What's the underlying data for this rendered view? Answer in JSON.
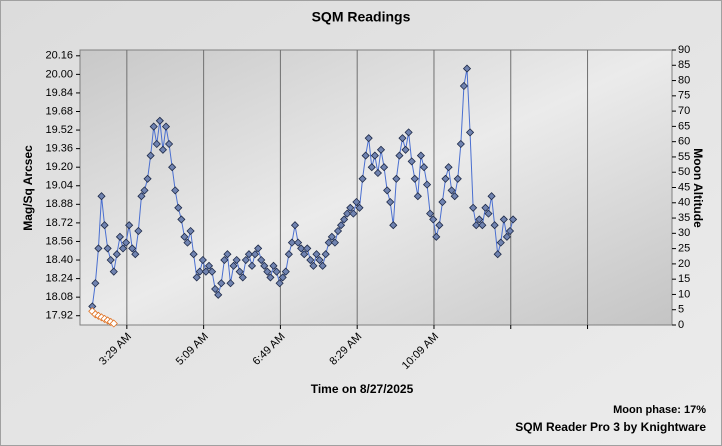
{
  "chart_data": {
    "type": "line",
    "title": "SQM Readings",
    "y_label": "Mag/Sq Arcsec",
    "y2_label": "Moon Altitude",
    "x_label": "Time on 8/27/2025",
    "annotations": [
      "Moon phase: 17%",
      "SQM Reader Pro 3 by Knightware"
    ],
    "xlim": [
      "2:28 AM",
      "3:19 PM"
    ],
    "xticks": [
      {
        "value": "3:29 AM",
        "label": "3:29 AM"
      },
      {
        "value": "5:09 AM",
        "label": "5:09 AM"
      },
      {
        "value": "6:49 AM",
        "label": "6:49 AM"
      },
      {
        "value": "8:29 AM",
        "label": "8:29 AM"
      },
      {
        "value": "10:09 AM",
        "label": "10:09 AM"
      },
      {
        "value": "11:49 AM",
        "label": null
      },
      {
        "value": "1:29 PM",
        "label": null
      }
    ],
    "ylim": [
      17.84,
      20.21
    ],
    "yticks": [
      17.92,
      18.08,
      18.24,
      {
        "value": 18.4,
        "label": "18.40"
      },
      18.56,
      18.72,
      18.88,
      19.04,
      {
        "value": 19.2,
        "label": "19.20"
      },
      19.36,
      19.52,
      19.68,
      19.84,
      {
        "value": 20,
        "label": "20.00"
      },
      20.16
    ],
    "y2lim": [
      0,
      90
    ],
    "y2ticks": [
      0,
      5,
      10,
      15,
      20,
      25,
      30,
      35,
      40,
      45,
      50,
      55,
      60,
      65,
      70,
      75,
      80,
      85,
      90
    ],
    "grid": {
      "x": true,
      "y": false
    },
    "x": [
      "2:44 AM",
      "2:48 AM",
      "2:52 AM",
      "2:56 AM",
      "3:00 AM",
      "3:04 AM",
      "3:08 AM",
      "3:12 AM",
      "3:16 AM",
      "3:20 AM",
      "3:24 AM",
      "3:28 AM",
      "3:32 AM",
      "3:36 AM",
      "3:40 AM",
      "3:44 AM",
      "3:48 AM",
      "3:52 AM",
      "3:56 AM",
      "4:00 AM",
      "4:04 AM",
      "4:08 AM",
      "4:12 AM",
      "4:16 AM",
      "4:20 AM",
      "4:24 AM",
      "4:28 AM",
      "4:32 AM",
      "4:36 AM",
      "4:40 AM",
      "4:44 AM",
      "4:48 AM",
      "4:52 AM",
      "4:56 AM",
      "5:00 AM",
      "5:04 AM",
      "5:08 AM",
      "5:12 AM",
      "5:16 AM",
      "5:20 AM",
      "5:24 AM",
      "5:28 AM",
      "5:32 AM",
      "5:36 AM",
      "5:40 AM",
      "5:44 AM",
      "5:48 AM",
      "5:52 AM",
      "5:56 AM",
      "6:00 AM",
      "6:04 AM",
      "6:08 AM",
      "6:12 AM",
      "6:16 AM",
      "6:20 AM",
      "6:24 AM",
      "6:28 AM",
      "6:32 AM",
      "6:36 AM",
      "6:40 AM",
      "6:44 AM",
      "6:48 AM",
      "6:52 AM",
      "6:56 AM",
      "7:00 AM",
      "7:04 AM",
      "7:08 AM",
      "7:12 AM",
      "7:16 AM",
      "7:20 AM",
      "7:24 AM",
      "7:28 AM",
      "7:32 AM",
      "7:36 AM",
      "7:40 AM",
      "7:44 AM",
      "7:48 AM",
      "7:52 AM",
      "7:56 AM",
      "8:00 AM",
      "8:04 AM",
      "8:08 AM",
      "8:12 AM",
      "8:16 AM",
      "8:20 AM",
      "8:24 AM",
      "8:28 AM",
      "8:32 AM",
      "8:36 AM",
      "8:40 AM",
      "8:44 AM",
      "8:48 AM",
      "8:52 AM",
      "8:56 AM",
      "9:00 AM",
      "9:04 AM",
      "9:08 AM",
      "9:12 AM",
      "9:16 AM",
      "9:20 AM",
      "9:24 AM",
      "9:28 AM",
      "9:32 AM",
      "9:36 AM",
      "9:40 AM",
      "9:44 AM",
      "9:48 AM",
      "9:52 AM",
      "9:56 AM",
      "10:00 AM",
      "10:04 AM",
      "10:08 AM",
      "10:12 AM",
      "10:16 AM",
      "10:20 AM",
      "10:24 AM",
      "10:28 AM",
      "10:32 AM",
      "10:36 AM",
      "10:40 AM",
      "10:44 AM",
      "10:48 AM",
      "10:52 AM",
      "10:56 AM",
      "11:00 AM",
      "11:04 AM",
      "11:08 AM",
      "11:12 AM",
      "11:16 AM",
      "11:20 AM",
      "11:24 AM",
      "11:28 AM",
      "11:32 AM",
      "11:36 AM",
      "11:40 AM",
      "11:44 AM",
      "11:48 AM",
      "11:52 AM"
    ],
    "series": [
      {
        "color": "#4a6fd0",
        "marker_color": "#7083b0",
        "values": [
          18.0,
          18.2,
          18.5,
          18.95,
          18.7,
          18.5,
          18.4,
          18.3,
          18.45,
          18.6,
          18.5,
          18.55,
          18.7,
          18.5,
          18.45,
          18.65,
          18.95,
          19.0,
          19.1,
          19.3,
          19.55,
          19.4,
          19.6,
          19.35,
          19.55,
          19.4,
          19.2,
          19.0,
          18.85,
          18.75,
          18.6,
          18.55,
          18.65,
          18.45,
          18.25,
          18.3,
          18.4,
          18.3,
          18.35,
          18.3,
          18.15,
          18.1,
          18.2,
          18.4,
          18.45,
          18.2,
          18.35,
          18.4,
          18.3,
          18.25,
          18.4,
          18.45,
          18.35,
          18.45,
          18.5,
          18.4,
          18.35,
          18.3,
          18.25,
          18.35,
          18.3,
          18.2,
          18.25,
          18.3,
          18.45,
          18.55,
          18.7,
          18.55,
          18.5,
          18.45,
          18.5,
          18.4,
          18.35,
          18.45,
          18.4,
          18.35,
          18.45,
          18.55,
          18.6,
          18.55,
          18.65,
          18.7,
          18.75,
          18.8,
          18.85,
          18.8,
          18.9,
          18.85,
          19.1,
          19.3,
          19.45,
          19.2,
          19.3,
          19.15,
          19.35,
          19.2,
          19.0,
          18.9,
          18.7,
          19.1,
          19.3,
          19.45,
          19.35,
          19.5,
          19.25,
          19.1,
          18.95,
          19.3,
          19.2,
          19.05,
          18.8,
          18.75,
          18.6,
          18.7,
          18.9,
          19.1,
          19.2,
          19.0,
          18.95,
          19.1,
          19.4,
          19.9,
          20.05,
          19.5,
          18.85,
          18.7,
          18.75,
          18.7,
          18.85,
          18.8,
          18.95,
          18.7,
          18.45,
          18.55,
          18.75,
          18.6,
          18.65,
          18.75
        ]
      },
      {
        "axis": "y2",
        "color": "#e07020",
        "marker_color": "#ffffff",
        "x": [
          "2:44 AM",
          "2:48 AM",
          "2:52 AM",
          "2:56 AM",
          "3:00 AM",
          "3:04 AM",
          "3:08 AM",
          "3:12 AM"
        ],
        "values": [
          4.5,
          3.5,
          3,
          2.5,
          2,
          1.5,
          1,
          0.5
        ]
      }
    ]
  }
}
